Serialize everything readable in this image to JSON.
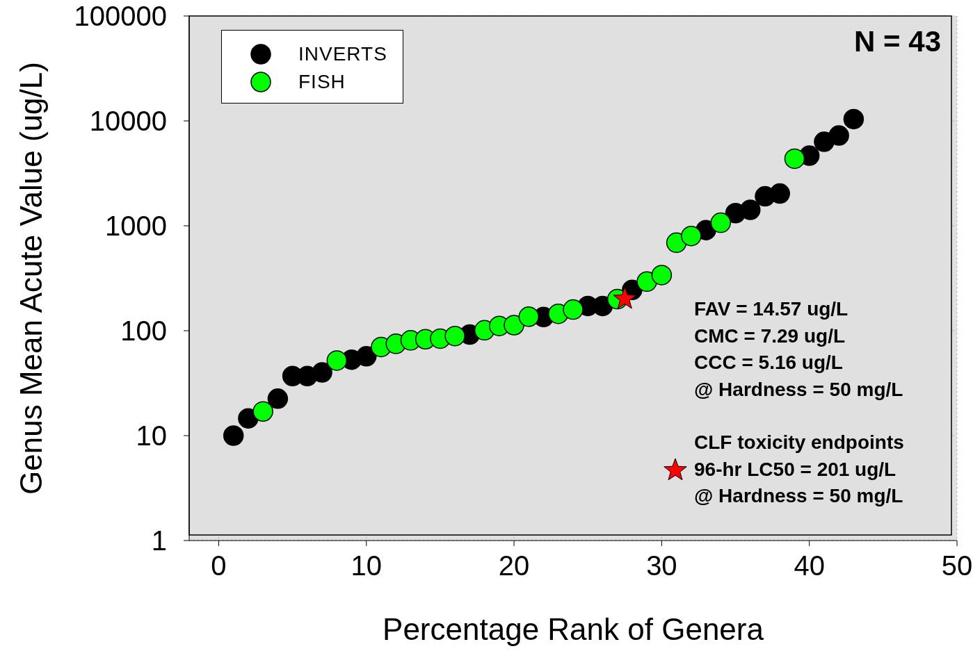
{
  "chart_data": {
    "type": "scatter",
    "xlabel": "Percentage Rank of Genera",
    "ylabel": "Genus Mean Acute Value (ug/L)",
    "xlim": [
      -2,
      50
    ],
    "xticks": [
      0,
      10,
      20,
      30,
      40,
      50
    ],
    "ylim": [
      1,
      100000
    ],
    "yticks": [
      1,
      10,
      100,
      1000,
      10000,
      100000
    ],
    "log": "y",
    "grid": true,
    "legend": "top left",
    "marker": "circle",
    "series": [
      {
        "name": "INVERTS",
        "color": "#000000",
        "x": [
          1,
          2,
          4,
          5,
          6,
          7,
          9,
          10,
          17,
          22,
          25,
          26,
          28,
          33,
          35,
          36,
          37,
          38,
          40,
          41,
          42,
          43
        ],
        "values": [
          10,
          14.6,
          22.5,
          37,
          37,
          40,
          53,
          57,
          92,
          135,
          172,
          172,
          245,
          910,
          1320,
          1420,
          1910,
          2030,
          4660,
          6320,
          7250,
          10400
        ]
      },
      {
        "name": "FISH",
        "color": "#00ff00",
        "x": [
          3,
          8,
          11,
          12,
          13,
          14,
          15,
          16,
          18,
          19,
          20,
          21,
          23,
          24,
          27,
          29,
          30,
          31,
          32,
          34,
          39
        ],
        "values": [
          17,
          52,
          70,
          75,
          81,
          83,
          84,
          89,
          101,
          111,
          113,
          136,
          145,
          159,
          200,
          294,
          339,
          690,
          800,
          1070,
          4360
        ]
      },
      {
        "name": "96-hr LC50 = 201 ug/L",
        "color": "#ff0000",
        "marker": "star",
        "x": [
          27.5
        ],
        "values": [
          201
        ]
      }
    ],
    "annotations": [
      "N = 43",
      "FAV = 14.57 ug/L",
      "CMC = 7.29 ug/L",
      "CCC = 5.16 ug/L",
      "@ Hardness = 50 mg/L",
      "CLF toxicity endpoints",
      "@ Hardness = 50 mg/L"
    ]
  }
}
